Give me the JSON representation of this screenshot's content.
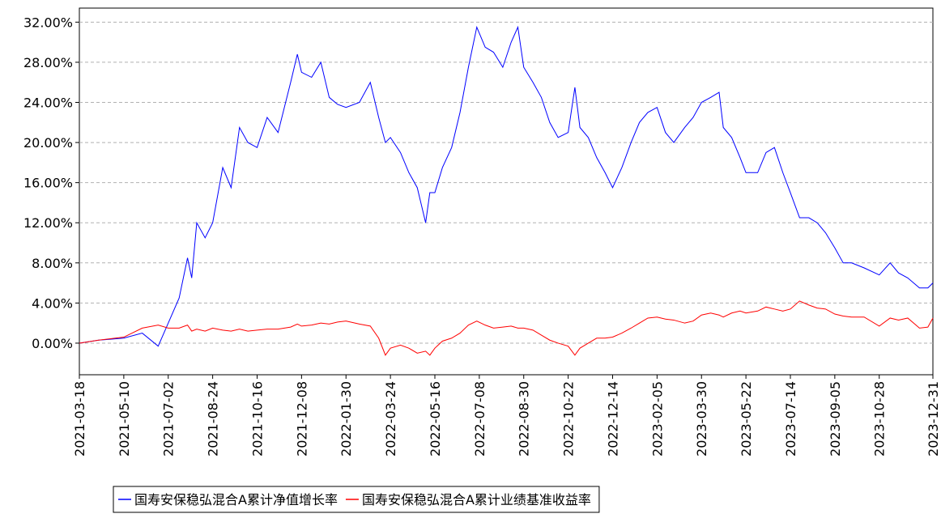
{
  "chart_data": {
    "type": "line",
    "x": [
      "2021-03-18",
      "2021-04-10",
      "2021-05-10",
      "2021-06-01",
      "2021-06-20",
      "2021-07-02",
      "2021-07-15",
      "2021-07-25",
      "2021-07-30",
      "2021-08-05",
      "2021-08-15",
      "2021-08-24",
      "2021-09-05",
      "2021-09-15",
      "2021-09-25",
      "2021-10-05",
      "2021-10-16",
      "2021-10-28",
      "2021-11-10",
      "2021-11-25",
      "2021-12-03",
      "2021-12-08",
      "2021-12-20",
      "2021-12-31",
      "2022-01-10",
      "2022-01-20",
      "2022-01-30",
      "2022-02-15",
      "2022-02-28",
      "2022-03-10",
      "2022-03-18",
      "2022-03-24",
      "2022-04-05",
      "2022-04-15",
      "2022-04-25",
      "2022-05-05",
      "2022-05-10",
      "2022-05-16",
      "2022-05-25",
      "2022-06-05",
      "2022-06-15",
      "2022-06-25",
      "2022-07-05",
      "2022-07-15",
      "2022-07-25",
      "2022-08-05",
      "2022-08-15",
      "2022-08-23",
      "2022-08-30",
      "2022-09-10",
      "2022-09-20",
      "2022-09-30",
      "2022-10-10",
      "2022-10-22",
      "2022-10-30",
      "2022-11-05",
      "2022-11-15",
      "2022-11-25",
      "2022-12-05",
      "2022-12-14",
      "2022-12-25",
      "2023-01-05",
      "2023-01-15",
      "2023-01-25",
      "2023-02-05",
      "2023-02-15",
      "2023-02-25",
      "2023-03-10",
      "2023-03-20",
      "2023-03-30",
      "2023-04-10",
      "2023-04-20",
      "2023-04-25",
      "2023-05-05",
      "2023-05-15",
      "2023-05-22",
      "2023-06-05",
      "2023-06-15",
      "2023-06-25",
      "2023-07-05",
      "2023-07-14",
      "2023-07-25",
      "2023-08-05",
      "2023-08-15",
      "2023-08-25",
      "2023-09-05",
      "2023-09-15",
      "2023-09-25",
      "2023-10-10",
      "2023-10-28",
      "2023-11-10",
      "2023-11-20",
      "2023-12-01",
      "2023-12-15",
      "2023-12-25",
      "2023-12-31"
    ],
    "series": [
      {
        "name": "国寿安保稳弘混合A累计净值增长率",
        "color": "#0000ff",
        "values": [
          0,
          0.3,
          0.5,
          1.0,
          -0.3,
          2.0,
          4.5,
          8.5,
          6.5,
          12.0,
          10.5,
          12.0,
          17.5,
          15.5,
          21.5,
          20.0,
          19.5,
          22.5,
          21.0,
          26.0,
          28.8,
          27.0,
          26.5,
          28.0,
          24.5,
          23.8,
          23.5,
          24.0,
          26.0,
          22.5,
          20.0,
          20.5,
          19.0,
          17.0,
          15.5,
          12.0,
          15.0,
          15.0,
          17.5,
          19.5,
          23.0,
          27.5,
          31.5,
          29.5,
          29.0,
          27.5,
          30.0,
          31.5,
          27.5,
          26.0,
          24.5,
          22.0,
          20.5,
          21.0,
          25.5,
          21.5,
          20.5,
          18.5,
          17.0,
          15.5,
          17.5,
          20.0,
          22.0,
          23.0,
          23.5,
          21.0,
          20.0,
          21.5,
          22.5,
          24.0,
          24.5,
          25.0,
          21.5,
          20.5,
          18.5,
          17.0,
          17.0,
          19.0,
          19.5,
          17.0,
          15.0,
          12.5,
          12.5,
          12.0,
          11.0,
          9.5,
          8.0,
          8.0,
          7.5,
          6.8,
          8.0,
          7.0,
          6.5,
          5.5,
          5.5,
          6.0
        ]
      },
      {
        "name": "国寿安保稳弘混合A累计业绩基准收益率",
        "color": "#ff0000",
        "values": [
          0,
          0.3,
          0.6,
          1.5,
          1.8,
          1.5,
          1.5,
          1.8,
          1.2,
          1.4,
          1.2,
          1.5,
          1.3,
          1.2,
          1.4,
          1.2,
          1.3,
          1.4,
          1.4,
          1.6,
          1.9,
          1.7,
          1.8,
          2.0,
          1.9,
          2.1,
          2.2,
          1.9,
          1.7,
          0.5,
          -1.2,
          -0.5,
          -0.2,
          -0.5,
          -1.0,
          -0.8,
          -1.2,
          -0.5,
          0.2,
          0.5,
          1.0,
          1.8,
          2.2,
          1.8,
          1.5,
          1.6,
          1.7,
          1.5,
          1.5,
          1.3,
          0.8,
          0.3,
          0,
          -0.3,
          -1.2,
          -0.5,
          0,
          0.5,
          0.5,
          0.6,
          1.0,
          1.5,
          2.0,
          2.5,
          2.6,
          2.4,
          2.3,
          2.0,
          2.2,
          2.8,
          3.0,
          2.8,
          2.6,
          3.0,
          3.2,
          3.0,
          3.2,
          3.6,
          3.4,
          3.2,
          3.4,
          4.2,
          3.8,
          3.5,
          3.4,
          2.9,
          2.7,
          2.6,
          2.6,
          1.7,
          2.5,
          2.3,
          2.5,
          1.5,
          1.6,
          2.5
        ]
      }
    ],
    "xlim": [
      "2021-03-18",
      "2023-12-31"
    ],
    "xticks": [
      "2021-03-18",
      "2021-05-10",
      "2021-07-02",
      "2021-08-24",
      "2021-10-16",
      "2021-12-08",
      "2022-01-30",
      "2022-03-24",
      "2022-05-16",
      "2022-07-08",
      "2022-08-30",
      "2022-10-22",
      "2022-12-14",
      "2023-02-05",
      "2023-03-30",
      "2023-05-22",
      "2023-07-14",
      "2023-09-05",
      "2023-10-28",
      "2023-12-31"
    ],
    "ylim": [
      -3.15,
      33.4
    ],
    "yticks": [
      {
        "value": 0,
        "label": "0.00%"
      },
      {
        "value": 4,
        "label": "4.00%"
      },
      {
        "value": 8,
        "label": "8.00%"
      },
      {
        "value": 12,
        "label": "12.00%"
      },
      {
        "value": 16,
        "label": "16.00%"
      },
      {
        "value": 20,
        "label": "20.00%"
      },
      {
        "value": 24,
        "label": "24.00%"
      },
      {
        "value": 28,
        "label": "28.00%"
      },
      {
        "value": 32,
        "label": "32.00%"
      }
    ],
    "grid": true,
    "legend": "bottom"
  }
}
